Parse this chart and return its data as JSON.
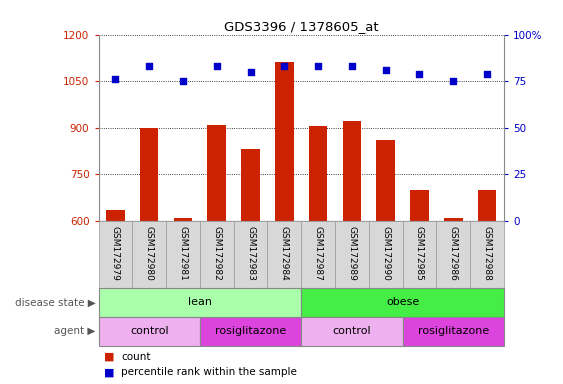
{
  "title": "GDS3396 / 1378605_at",
  "samples": [
    "GSM172979",
    "GSM172980",
    "GSM172981",
    "GSM172982",
    "GSM172983",
    "GSM172984",
    "GSM172987",
    "GSM172989",
    "GSM172990",
    "GSM172985",
    "GSM172986",
    "GSM172988"
  ],
  "counts": [
    635,
    900,
    610,
    910,
    830,
    1110,
    905,
    920,
    860,
    700,
    610,
    700
  ],
  "percentiles": [
    76,
    83,
    75,
    83,
    80,
    83,
    83,
    83,
    81,
    79,
    75,
    79
  ],
  "ylim_left": [
    600,
    1200
  ],
  "ylim_right": [
    0,
    100
  ],
  "yticks_left": [
    600,
    750,
    900,
    1050,
    1200
  ],
  "yticks_right": [
    0,
    25,
    50,
    75,
    100
  ],
  "bar_color": "#cc2200",
  "dot_color": "#0000cc",
  "disease_state_groups": [
    {
      "label": "lean",
      "start": 0,
      "end": 6,
      "color": "#aaffaa"
    },
    {
      "label": "obese",
      "start": 6,
      "end": 12,
      "color": "#44ee44"
    }
  ],
  "agent_groups": [
    {
      "label": "control",
      "start": 0,
      "end": 3,
      "color": "#eeb0ee"
    },
    {
      "label": "rosiglitazone",
      "start": 3,
      "end": 6,
      "color": "#dd44dd"
    },
    {
      "label": "control",
      "start": 6,
      "end": 9,
      "color": "#eeb0ee"
    },
    {
      "label": "rosiglitazone",
      "start": 9,
      "end": 12,
      "color": "#dd44dd"
    }
  ]
}
